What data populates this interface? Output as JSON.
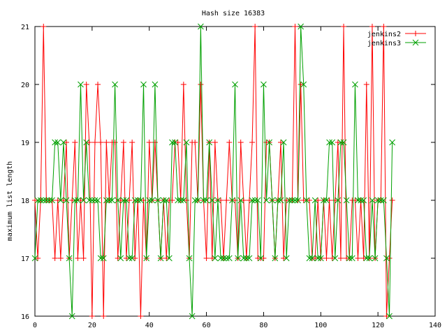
{
  "chart_data": {
    "type": "line",
    "title": "Hash size 16383",
    "xlabel": "",
    "ylabel": "maximum list length",
    "xlim": [
      0,
      140
    ],
    "ylim": [
      16,
      21
    ],
    "x_ticks": [
      0,
      20,
      40,
      60,
      80,
      100,
      120,
      140
    ],
    "y_ticks": [
      16,
      17,
      18,
      19,
      20,
      21
    ],
    "grid": false,
    "legend_position": "top-right",
    "series": [
      {
        "name": "jenkins2",
        "color": "#ff0000",
        "marker": "plus",
        "x": [
          0,
          1,
          2,
          3,
          4,
          5,
          6,
          7,
          8,
          9,
          10,
          11,
          12,
          13,
          14,
          15,
          16,
          17,
          18,
          19,
          20,
          21,
          22,
          23,
          24,
          25,
          26,
          27,
          28,
          29,
          30,
          31,
          32,
          33,
          34,
          35,
          36,
          37,
          38,
          39,
          40,
          41,
          42,
          43,
          44,
          45,
          46,
          47,
          48,
          49,
          50,
          51,
          52,
          53,
          54,
          55,
          56,
          57,
          58,
          59,
          60,
          61,
          62,
          63,
          64,
          65,
          66,
          67,
          68,
          69,
          70,
          71,
          72,
          73,
          74,
          75,
          76,
          77,
          78,
          79,
          80,
          81,
          82,
          83,
          84,
          85,
          86,
          87,
          88,
          89,
          90,
          91,
          92,
          93,
          94,
          95,
          96,
          97,
          98,
          99,
          100,
          101,
          102,
          103,
          104,
          105,
          106,
          107,
          108,
          109,
          110,
          111,
          112,
          113,
          114,
          115,
          116,
          117,
          118,
          119,
          120,
          121,
          122,
          123,
          124,
          125
        ],
        "values": [
          18,
          17,
          18,
          21,
          18,
          18,
          18,
          17,
          18,
          17,
          18,
          19,
          17,
          18,
          19,
          17,
          18,
          17,
          20,
          19,
          16,
          19,
          20,
          19,
          16,
          19,
          18,
          19,
          19,
          17,
          18,
          19,
          17,
          18,
          19,
          17,
          18,
          16,
          18,
          17,
          19,
          18,
          19,
          18,
          17,
          18,
          17,
          18,
          18,
          19,
          19,
          18,
          20,
          18,
          17,
          19,
          19,
          18,
          20,
          18,
          17,
          19,
          17,
          19,
          18,
          18,
          17,
          18,
          19,
          18,
          18,
          17,
          19,
          18,
          17,
          18,
          19,
          21,
          17,
          17,
          17,
          19,
          19,
          18,
          17,
          18,
          19,
          17,
          18,
          18,
          18,
          21,
          18,
          20,
          18,
          18,
          18,
          17,
          17,
          18,
          17,
          18,
          17,
          18,
          17,
          18,
          19,
          17,
          21,
          17,
          17,
          18,
          18,
          17,
          18,
          17,
          20,
          17,
          21,
          17,
          18,
          18,
          21,
          16,
          17,
          18
        ]
      },
      {
        "name": "jenkins3",
        "color": "#00a000",
        "marker": "cross",
        "x": [
          0,
          1,
          2,
          3,
          4,
          5,
          6,
          7,
          8,
          9,
          10,
          11,
          12,
          13,
          14,
          15,
          16,
          17,
          18,
          19,
          20,
          21,
          22,
          23,
          24,
          25,
          26,
          27,
          28,
          29,
          30,
          31,
          32,
          33,
          34,
          35,
          36,
          37,
          38,
          39,
          40,
          41,
          42,
          43,
          44,
          45,
          46,
          47,
          48,
          49,
          50,
          51,
          52,
          53,
          54,
          55,
          56,
          57,
          58,
          59,
          60,
          61,
          62,
          63,
          64,
          65,
          66,
          67,
          68,
          69,
          70,
          71,
          72,
          73,
          74,
          75,
          76,
          77,
          78,
          79,
          80,
          81,
          82,
          83,
          84,
          85,
          86,
          87,
          88,
          89,
          90,
          91,
          92,
          93,
          94,
          95,
          96,
          97,
          98,
          99,
          100,
          101,
          102,
          103,
          104,
          105,
          106,
          107,
          108,
          109,
          110,
          111,
          112,
          113,
          114,
          115,
          116,
          117,
          118,
          119,
          120,
          121,
          122,
          123,
          124,
          125
        ],
        "values": [
          17,
          18,
          18,
          18,
          18,
          18,
          18,
          19,
          19,
          18,
          19,
          18,
          17,
          16,
          18,
          18,
          20,
          18,
          19,
          18,
          18,
          18,
          18,
          17,
          17,
          18,
          18,
          18,
          20,
          18,
          17,
          18,
          18,
          17,
          17,
          18,
          18,
          18,
          20,
          17,
          18,
          18,
          20,
          18,
          17,
          18,
          18,
          17,
          19,
          19,
          18,
          18,
          18,
          19,
          17,
          16,
          18,
          18,
          21,
          18,
          18,
          19,
          18,
          17,
          18,
          17,
          17,
          17,
          17,
          18,
          20,
          17,
          18,
          17,
          17,
          17,
          18,
          18,
          18,
          17,
          20,
          18,
          19,
          18,
          17,
          18,
          18,
          19,
          17,
          18,
          18,
          18,
          18,
          21,
          20,
          18,
          17,
          17,
          18,
          17,
          17,
          18,
          18,
          19,
          19,
          17,
          18,
          19,
          19,
          18,
          17,
          17,
          20,
          18,
          18,
          18,
          17,
          17,
          18,
          17,
          18,
          18,
          18,
          17,
          16,
          19
        ]
      }
    ]
  }
}
